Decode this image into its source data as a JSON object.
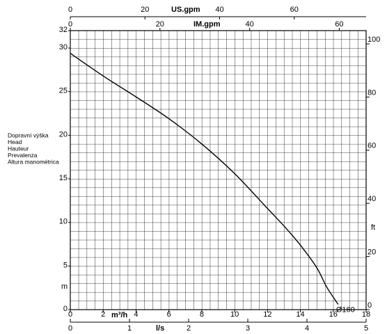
{
  "chart_data": {
    "type": "line",
    "ylabel_lines": [
      "Dopravní výška",
      "Head",
      "Hauteur",
      "Prevalenza",
      "Altura manométrica"
    ],
    "ylabel": "m",
    "y2label": "ft",
    "xlabel": "m³/h",
    "x2label": "US.gpm",
    "x3label": "IM.gpm",
    "x4label": "l/s",
    "xlim": [
      0,
      18
    ],
    "xticks": [
      0,
      2,
      4,
      6,
      8,
      10,
      12,
      14,
      16,
      18
    ],
    "x2lim": [
      0,
      79.25
    ],
    "x2ticks": [
      0,
      20,
      40,
      60
    ],
    "x3lim": [
      0,
      65.99
    ],
    "x3ticks": [
      0,
      20,
      40,
      60
    ],
    "x4lim": [
      0,
      5
    ],
    "x4ticks": [
      0,
      1,
      2,
      3,
      4,
      5
    ],
    "ylim": [
      0,
      32
    ],
    "yticks": [
      0,
      5,
      10,
      15,
      20,
      25,
      30,
      32
    ],
    "y2lim": [
      0,
      104.99
    ],
    "y2ticks": [
      0,
      20,
      40,
      60,
      80,
      100
    ],
    "grid": true,
    "series": [
      {
        "name": "Ø160",
        "color": "#000000",
        "x": [
          0,
          2,
          4,
          6,
          8,
          10,
          12,
          13,
          14,
          15,
          15.6,
          16.3
        ],
        "values": [
          29.4,
          26.8,
          24.4,
          21.9,
          19,
          15.6,
          11.6,
          9.6,
          7.4,
          4.8,
          2.6,
          0.6
        ]
      }
    ]
  }
}
